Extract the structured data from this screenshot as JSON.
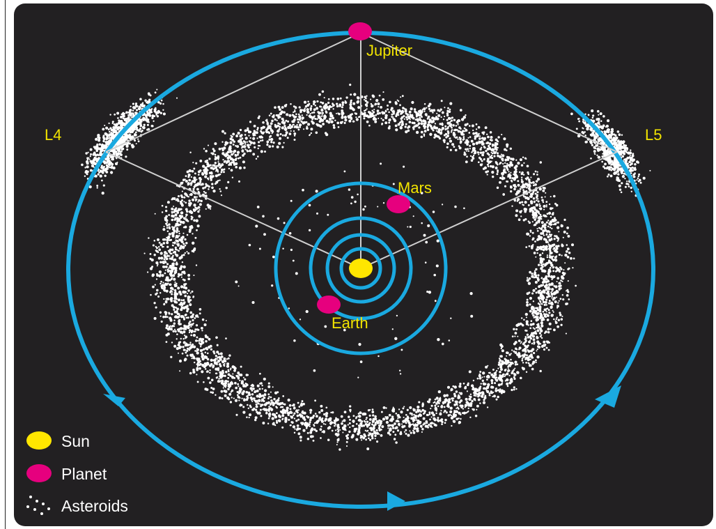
{
  "labels": {
    "jupiter": "Jupiter",
    "l4": "L4",
    "l5": "L5",
    "mars": "Mars",
    "earth": "Earth"
  },
  "legend": {
    "sun": "Sun",
    "planet": "Planet",
    "asteroids": "Asteroids"
  },
  "colors": {
    "background": "#222022",
    "orbit": "#1aa9e0",
    "sun": "#ffe600",
    "planet": "#e6007e",
    "label": "#f2e400",
    "asteroid": "#ffffff",
    "legend_text": "#ffffff",
    "connector": "#d0d0d0"
  }
}
